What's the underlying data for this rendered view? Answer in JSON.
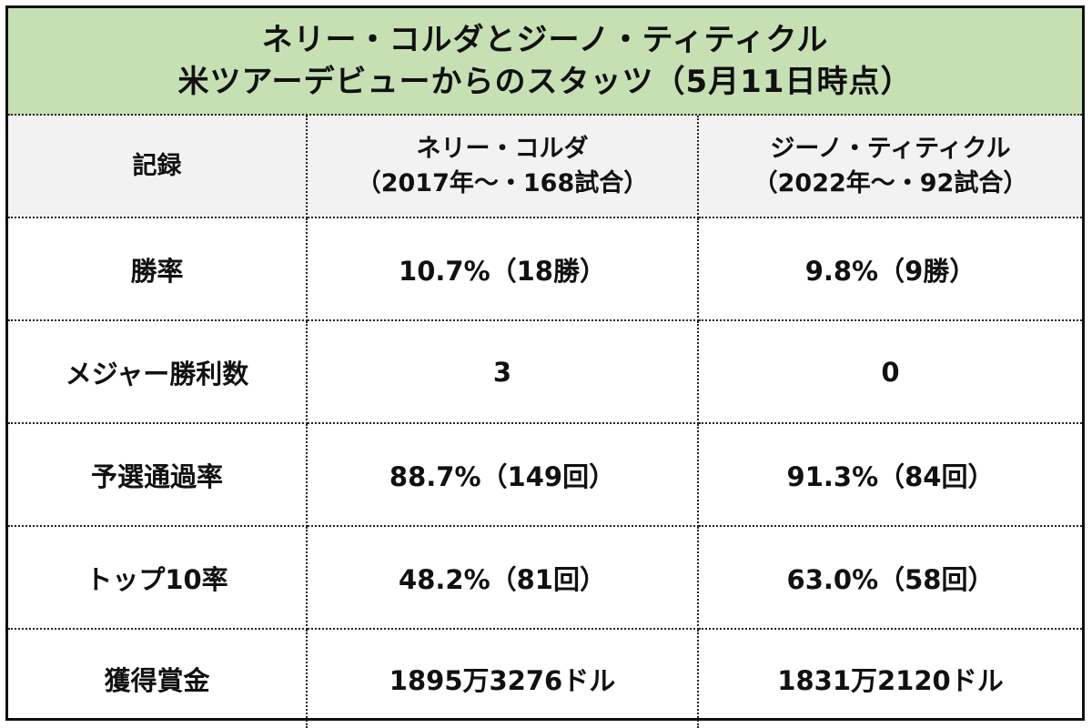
{
  "title": {
    "line1": "ネリー・コルダとジーノ・ティティクル",
    "line2": "米ツアーデビューからのスタッツ（5月11日時点）"
  },
  "header": {
    "label": "記録",
    "player1_name": "ネリー・コルダ",
    "player1_sub": "（2017年〜・168試合）",
    "player2_name": "ジーノ・ティティクル",
    "player2_sub": "（2022年〜・92試合）"
  },
  "rows": [
    {
      "label": "勝率",
      "player1": "10.7%（18勝）",
      "player2": "9.8%（9勝）"
    },
    {
      "label": "メジャー勝利数",
      "player1": "3",
      "player2": "0"
    },
    {
      "label": "予選通過率",
      "player1": "88.7%（149回）",
      "player2": "91.3%（84回）"
    },
    {
      "label": "トップ10率",
      "player1": "48.2%（81回）",
      "player2": "63.0%（58回）"
    },
    {
      "label": "獲得賞金",
      "player1": "1895万3276ドル",
      "player2": "1831万2120ドル"
    }
  ],
  "colors": {
    "title_background": "#c6e0b4",
    "header_background": "#f2f2f2",
    "border": "#111111"
  }
}
